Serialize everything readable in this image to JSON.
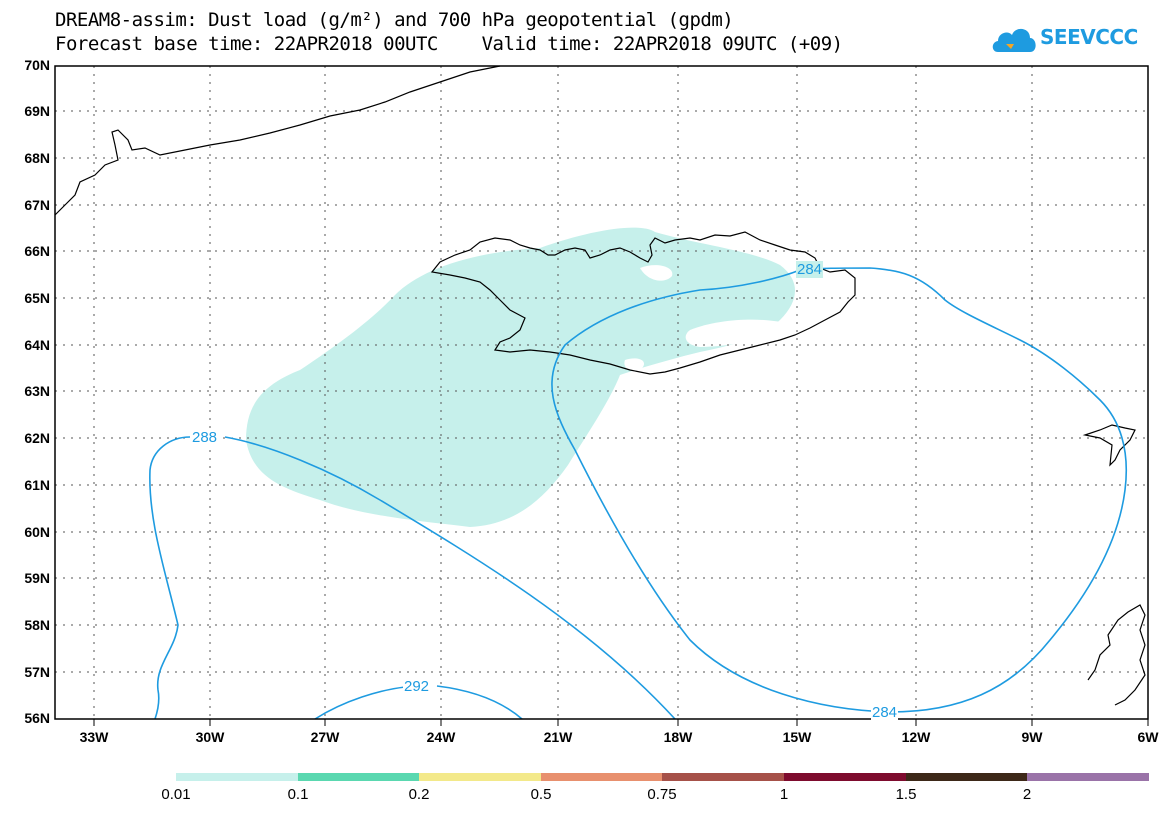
{
  "header": {
    "title_line1": "DREAM8-assim: Dust load (g/m²) and 700 hPa geopotential (gpdm)",
    "title_line2": "Forecast base time: 22APR2018 00UTC    Valid time: 22APR2018 09UTC (+09)"
  },
  "logo": {
    "text": "SEEVCCC",
    "icon": "cloud-icon",
    "color": "#1e9be0"
  },
  "map": {
    "lat_labels": [
      "70N",
      "69N",
      "68N",
      "67N",
      "66N",
      "65N",
      "64N",
      "63N",
      "62N",
      "61N",
      "60N",
      "59N",
      "58N",
      "57N",
      "56N"
    ],
    "lon_labels": [
      "33W",
      "30W",
      "27W",
      "24W",
      "21W",
      "18W",
      "15W",
      "12W",
      "9W",
      "6W"
    ],
    "contour_labels": {
      "c284_top": "284",
      "c284_bottom": "284",
      "c288": "288",
      "c292": "292"
    },
    "contour_color": "#1e9be0",
    "dust_fill_color": "#c6f0eb"
  },
  "colorbar": {
    "labels": [
      "0.01",
      "0.1",
      "0.2",
      "0.5",
      "0.75",
      "1",
      "1.5",
      "2"
    ],
    "colors": [
      "#c6f0eb",
      "#5ad8b0",
      "#f3e98a",
      "#e8906e",
      "#a65149",
      "#7e0b2e",
      "#3d2818",
      "#9a73a8"
    ]
  }
}
